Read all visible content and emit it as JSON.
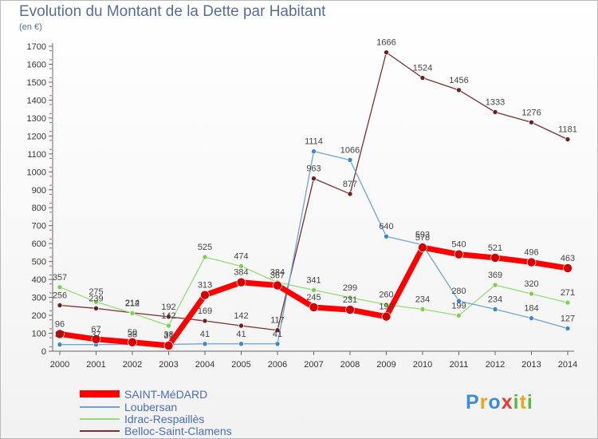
{
  "page": {
    "title": "Evolution du Montant de la Dette par Habitant",
    "unit": "(en €)",
    "logo": {
      "p": "P",
      "r": "r",
      "o": "o",
      "x": "x",
      "i1": "i",
      "t": "t",
      "i2": "i"
    }
  },
  "chart_data": {
    "type": "line",
    "title": "Evolution du Montant de la Dette par Habitant",
    "subtitle": "(en €)",
    "x": [
      "2000",
      "2001",
      "2002",
      "2003",
      "2004",
      "2005",
      "2006",
      "2007",
      "2008",
      "2009",
      "2010",
      "2011",
      "2012",
      "2013",
      "2014"
    ],
    "ylim": [
      0,
      1700
    ],
    "yticks": [
      0,
      100,
      200,
      300,
      400,
      500,
      600,
      700,
      800,
      900,
      1000,
      1100,
      1200,
      1300,
      1400,
      1500,
      1600,
      1700
    ],
    "grid": false,
    "legend_position": "bottom-left",
    "series": [
      {
        "name": "SAINT-MéDARD",
        "color": "#ff0000",
        "marker_color": "#d20000",
        "width": 7,
        "values": [
          96,
          67,
          50,
          31,
          313,
          384,
          367,
          245,
          231,
          193,
          578,
          540,
          521,
          496,
          463
        ]
      },
      {
        "name": "Loubersan",
        "color": "#6fa3d6",
        "marker_color": "#3f86c8",
        "width": 1.3,
        "values": [
          37,
          37,
          38,
          38,
          41,
          41,
          41,
          1114,
          1066,
          640,
          593,
          280,
          234,
          184,
          127
        ]
      },
      {
        "name": "Idrac-Respaillès",
        "color": "#96dc78",
        "marker_color": "#7ed050",
        "width": 1.3,
        "values": [
          357,
          275,
          212,
          142,
          525,
          474,
          384,
          341,
          299,
          260,
          234,
          199,
          369,
          320,
          271
        ]
      },
      {
        "name": "Belloc-Saint-Clamens",
        "color": "#7a3030",
        "marker_color": "#6b1f1f",
        "width": 1.3,
        "values": [
          256,
          239,
          214,
          192,
          169,
          142,
          117,
          963,
          877,
          1666,
          1524,
          1456,
          1333,
          1276,
          1181
        ]
      }
    ]
  }
}
